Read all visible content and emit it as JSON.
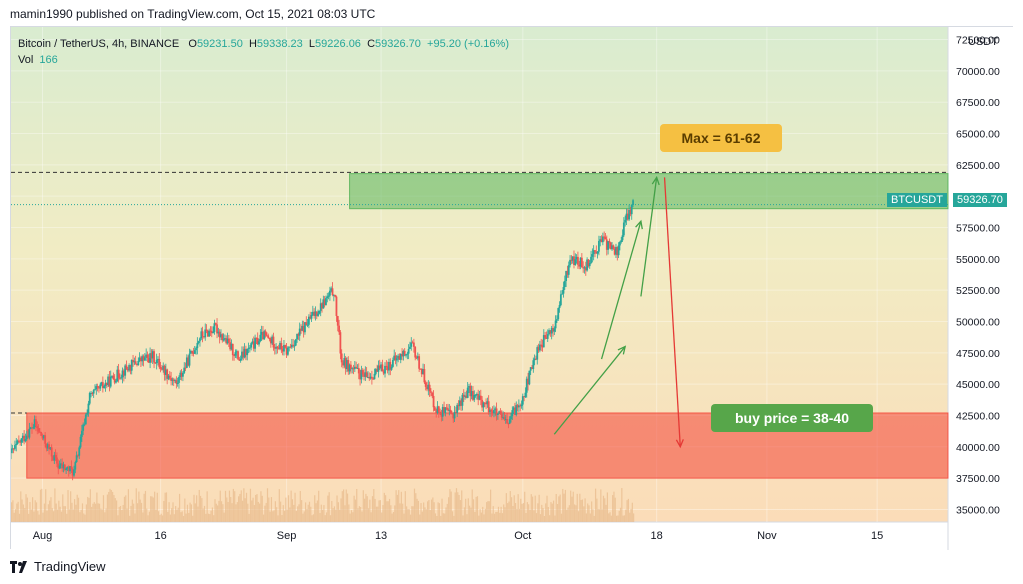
{
  "header": {
    "published": "mamin1990 published on TradingView.com, Oct 15, 2021 08:03 UTC"
  },
  "legend": {
    "symbol": "Bitcoin / TetherUS, 4h, BINANCE",
    "o_label": "O",
    "o": "59231.50",
    "h_label": "H",
    "h": "59338.23",
    "l_label": "L",
    "l": "59226.06",
    "c_label": "C",
    "c": "59326.70",
    "change": "+95.20 (+0.16%)",
    "vol_label": "Vol",
    "vol": "166"
  },
  "annotations": {
    "max_label": "Max = 61-62",
    "buy_label": "buy price = 38-40"
  },
  "price_tags": {
    "symbol_tag": "BTCUSDT",
    "last_price": "59326.70",
    "currency": "USDT"
  },
  "footer": {
    "brand": "TradingView"
  },
  "colors": {
    "up": "#26a69a",
    "down": "#ef5350",
    "green_zone": "#4caf50",
    "red_zone": "#f44336",
    "max_box": "#f5c042",
    "buy_box": "#57a64a"
  },
  "chart_data": {
    "type": "candlestick",
    "title": "",
    "y_ticks": [
      35000,
      37500,
      40000,
      42500,
      45000,
      47500,
      50000,
      52500,
      55000,
      57500,
      60000,
      62500,
      65000,
      67500,
      70000,
      72500
    ],
    "y_tick_labels": [
      "35000.00",
      "37500.00",
      "40000.00",
      "42500.00",
      "45000.00",
      "47500.00",
      "50000.00",
      "52500.00",
      "55000.00",
      "57500.00",
      "60000.00",
      "62500.00",
      "65000.00",
      "67500.00",
      "70000.00",
      "72500.00"
    ],
    "ylim": [
      34000,
      73500
    ],
    "x_ticks": [
      {
        "date": "2021-08-01",
        "label": "Aug"
      },
      {
        "date": "2021-08-16",
        "label": "16"
      },
      {
        "date": "2021-09-01",
        "label": "Sep"
      },
      {
        "date": "2021-09-13",
        "label": "13"
      },
      {
        "date": "2021-10-01",
        "label": "Oct"
      },
      {
        "date": "2021-10-18",
        "label": "18"
      },
      {
        "date": "2021-11-01",
        "label": "Nov"
      },
      {
        "date": "2021-11-15",
        "label": "15"
      }
    ],
    "xlim": [
      "2021-07-28",
      "2021-11-24"
    ],
    "price_path": [
      [
        "2021-07-28",
        39500
      ],
      [
        "2021-07-31",
        41800
      ],
      [
        "2021-08-03",
        38500
      ],
      [
        "2021-08-05",
        38000
      ],
      [
        "2021-08-07",
        44000
      ],
      [
        "2021-08-10",
        45500
      ],
      [
        "2021-08-13",
        46800
      ],
      [
        "2021-08-15",
        47200
      ],
      [
        "2021-08-18",
        45000
      ],
      [
        "2021-08-21",
        48800
      ],
      [
        "2021-08-23",
        49500
      ],
      [
        "2021-08-26",
        47000
      ],
      [
        "2021-08-29",
        48900
      ],
      [
        "2021-09-01",
        47600
      ],
      [
        "2021-09-04",
        50200
      ],
      [
        "2021-09-07",
        52500
      ],
      [
        "2021-09-08",
        46800
      ],
      [
        "2021-09-11",
        45500
      ],
      [
        "2021-09-14",
        46500
      ],
      [
        "2021-09-17",
        48000
      ],
      [
        "2021-09-20",
        43000
      ],
      [
        "2021-09-22",
        42500
      ],
      [
        "2021-09-24",
        44500
      ],
      [
        "2021-09-27",
        43000
      ],
      [
        "2021-09-29",
        41800
      ],
      [
        "2021-10-01",
        44000
      ],
      [
        "2021-10-03",
        48000
      ],
      [
        "2021-10-05",
        49500
      ],
      [
        "2021-10-07",
        55000
      ],
      [
        "2021-10-09",
        54500
      ],
      [
        "2021-10-11",
        56500
      ],
      [
        "2021-10-13",
        55500
      ],
      [
        "2021-10-14",
        58000
      ],
      [
        "2021-10-15",
        59326
      ]
    ],
    "zones": [
      {
        "name": "resistance",
        "from_date": "2021-09-09",
        "to_date": "2021-11-24",
        "low": 59000,
        "high": 61800,
        "color": "#4caf50"
      },
      {
        "name": "buy",
        "from_date": "2021-07-30",
        "to_date": "2021-11-24",
        "low": 37500,
        "high": 42700,
        "color": "#f44336"
      }
    ],
    "dashed_levels": [
      {
        "price": 61900,
        "style": "dashed",
        "color": "#333333"
      },
      {
        "price": 42700,
        "from_date": "2021-07-28",
        "to_date": "2021-07-30",
        "style": "dashed",
        "color": "#333333"
      },
      {
        "price": 59326.7,
        "style": "dotted",
        "color": "#26a69a"
      }
    ],
    "arrows": [
      {
        "from": [
          "2021-10-05",
          41000
        ],
        "to": [
          "2021-10-14",
          48000
        ],
        "color": "#43a047"
      },
      {
        "from": [
          "2021-10-11",
          47000
        ],
        "to": [
          "2021-10-16",
          58000
        ],
        "color": "#43a047"
      },
      {
        "from": [
          "2021-10-16",
          52000
        ],
        "to": [
          "2021-10-18",
          61500
        ],
        "color": "#43a047"
      },
      {
        "from": [
          "2021-10-19",
          61500
        ],
        "to": [
          "2021-10-21",
          40000
        ],
        "color": "#e53935"
      }
    ]
  }
}
